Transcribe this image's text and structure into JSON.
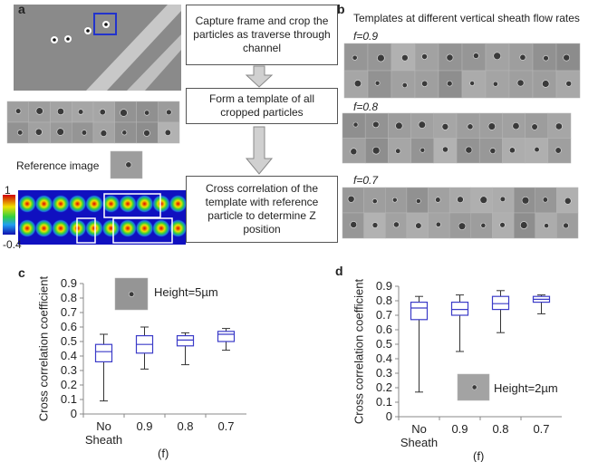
{
  "panel_a": {
    "label": "a",
    "reference_label": "Reference image",
    "colorbar": {
      "max": 1,
      "min": -0.4
    }
  },
  "flow": {
    "steps": [
      "Capture frame and crop the particles as traverse through channel",
      "Form a template of all cropped particles",
      "Cross correlation of the template with reference particle to determine Z position"
    ]
  },
  "panel_b": {
    "label": "b",
    "title": "Templates at different vertical sheath flow rates",
    "rows": [
      "f=0.9",
      "f=0.8",
      "f=0.7"
    ]
  },
  "chart_data": [
    {
      "type": "box",
      "panel_label": "c",
      "ylabel": "Cross correlation coefficient",
      "xlabel": "(f)",
      "inset_label": "Height=5µm",
      "categories": [
        "No Sheath",
        "0.9",
        "0.8",
        "0.7"
      ],
      "color": "#3b3bc8",
      "ylim": [
        0,
        0.9
      ],
      "yticks": [
        0,
        0.1,
        0.2,
        0.3,
        0.4,
        0.5,
        0.6,
        0.7,
        0.8,
        0.9
      ],
      "boxes": [
        {
          "min": 0.09,
          "q1": 0.36,
          "median": 0.43,
          "q3": 0.48,
          "max": 0.55
        },
        {
          "min": 0.31,
          "q1": 0.42,
          "median": 0.48,
          "q3": 0.54,
          "max": 0.6
        },
        {
          "min": 0.34,
          "q1": 0.47,
          "median": 0.51,
          "q3": 0.54,
          "max": 0.56
        },
        {
          "min": 0.44,
          "q1": 0.5,
          "median": 0.55,
          "q3": 0.57,
          "max": 0.59
        }
      ]
    },
    {
      "type": "box",
      "panel_label": "d",
      "ylabel": "Cross correlation coefficient",
      "xlabel": "(f)",
      "inset_label": "Height=2µm",
      "categories": [
        "No Sheath",
        "0.9",
        "0.8",
        "0.7"
      ],
      "color": "#3b3bc8",
      "ylim": [
        0,
        0.9
      ],
      "yticks": [
        0,
        0.1,
        0.2,
        0.3,
        0.4,
        0.5,
        0.6,
        0.7,
        0.8,
        0.9
      ],
      "boxes": [
        {
          "min": 0.17,
          "q1": 0.67,
          "median": 0.75,
          "q3": 0.79,
          "max": 0.83
        },
        {
          "min": 0.45,
          "q1": 0.7,
          "median": 0.74,
          "q3": 0.79,
          "max": 0.84
        },
        {
          "min": 0.58,
          "q1": 0.74,
          "median": 0.78,
          "q3": 0.83,
          "max": 0.87
        },
        {
          "min": 0.71,
          "q1": 0.79,
          "median": 0.81,
          "q3": 0.83,
          "max": 0.84
        }
      ]
    }
  ]
}
